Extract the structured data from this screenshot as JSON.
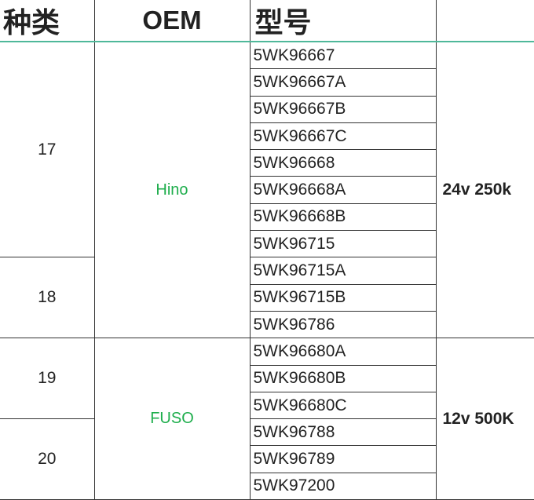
{
  "header": {
    "category": "种类",
    "oem": "OEM",
    "model": "型号",
    "spec": ""
  },
  "groups": [
    {
      "category": "17"
    },
    {
      "category": "18"
    },
    {
      "category": "19"
    },
    {
      "category": "20"
    }
  ],
  "oems": [
    "Hino",
    "FUSO"
  ],
  "specs": [
    "24v 250k",
    "12v 500K"
  ],
  "models": [
    "5WK96667",
    "5WK96667A",
    "5WK96667B",
    "5WK96667C",
    "5WK96668",
    "5WK96668A",
    "5WK96668B",
    "5WK96715",
    "5WK96715A",
    "5WK96715B",
    "5WK96786",
    "5WK96680A",
    "5WK96680B",
    "5WK96680C",
    "5WK96788",
    "5WK96789",
    "5WK97200"
  ],
  "colors": {
    "oem_text": "#1fae4d",
    "header_rule": "#4fb89a"
  }
}
